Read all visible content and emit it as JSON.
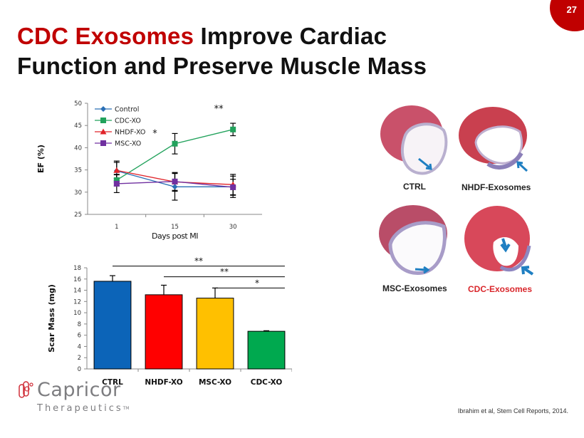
{
  "slide": {
    "number": "27",
    "title_accent": "CDC Exosomes",
    "title_rest_line1": " Improve Cardiac",
    "title_line2": "Function and Preserve Muscle Mass",
    "citation": "Ibrahim et al,  Stem Cell Reports, 2014.",
    "logo": {
      "name": "Capricor",
      "sub": "Therapeutics",
      "tm": "TM"
    },
    "brand_color": "#c00000"
  },
  "histology": {
    "panels": [
      {
        "label": "CTRL",
        "label_color": "#222222"
      },
      {
        "label": "NHDF-Exosomes",
        "label_color": "#222222"
      },
      {
        "label": "MSC-Exosomes",
        "label_color": "#222222"
      },
      {
        "label": "CDC-Exosomes",
        "label_color": "#d9262b"
      }
    ]
  },
  "chart_data": [
    {
      "type": "line",
      "title": "",
      "xlabel": "Days post MI",
      "ylabel": "EF (%)",
      "x": [
        "1",
        "15",
        "30"
      ],
      "ylim": [
        25,
        50
      ],
      "yticks": [
        25,
        30,
        35,
        40,
        45,
        50
      ],
      "grid": false,
      "legend": "top-left",
      "series": [
        {
          "name": "Control",
          "color": "#2a6fb5",
          "marker": "diamond",
          "values": [
            34.8,
            31.2,
            31.2
          ],
          "errors": [
            2.2,
            3.0,
            2.4
          ]
        },
        {
          "name": "CDC-XO",
          "color": "#22a25c",
          "marker": "square",
          "values": [
            32.7,
            40.9,
            44.1
          ],
          "errors": [
            1.3,
            2.3,
            1.4
          ]
        },
        {
          "name": "NHDF-XO",
          "color": "#e0242a",
          "marker": "triangle",
          "values": [
            34.9,
            32.3,
            31.7
          ],
          "errors": [
            1.8,
            2.1,
            2.3
          ]
        },
        {
          "name": "MSC-XO",
          "color": "#7030a0",
          "marker": "square",
          "values": [
            31.9,
            32.4,
            31.1
          ],
          "errors": [
            2.0,
            2.0,
            1.8
          ]
        }
      ],
      "annotations": [
        {
          "text": "*",
          "x": "15"
        },
        {
          "text": "**",
          "x": "30"
        }
      ]
    },
    {
      "type": "bar",
      "title": "",
      "xlabel": "",
      "ylabel": "Scar Mass (mg)",
      "categories": [
        "CTRL",
        "NHDF-XO",
        "MSC-XO",
        "CDC-XO"
      ],
      "values": [
        15.6,
        13.2,
        12.6,
        6.7
      ],
      "errors": [
        1.0,
        1.7,
        1.8,
        0.1
      ],
      "colors": [
        "#0c64b8",
        "#ff0000",
        "#ffc000",
        "#00a94f"
      ],
      "ylim": [
        0,
        18
      ],
      "yticks": [
        0,
        2,
        4,
        6,
        8,
        10,
        12,
        14,
        16,
        18
      ],
      "grid": false,
      "significance": [
        {
          "from": "CTRL",
          "to": "CDC-XO",
          "text": "**"
        },
        {
          "from": "NHDF-XO",
          "to": "CDC-XO",
          "text": "**"
        },
        {
          "from": "MSC-XO",
          "to": "CDC-XO",
          "text": "*"
        }
      ]
    }
  ]
}
